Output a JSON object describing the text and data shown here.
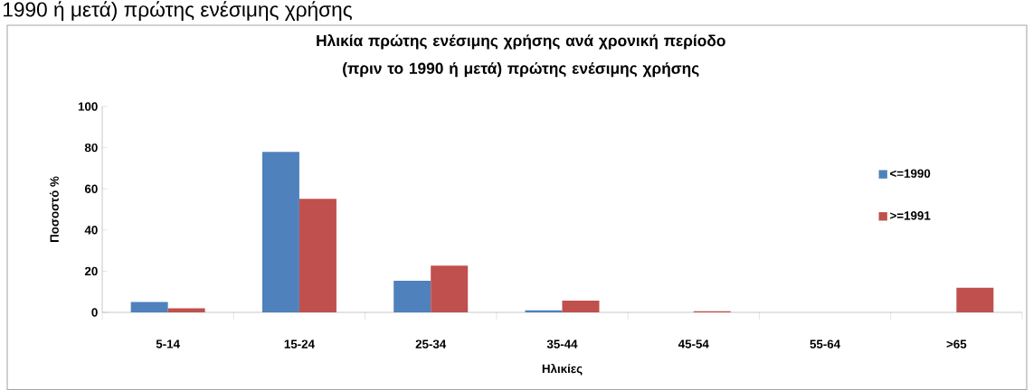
{
  "chart_data": {
    "type": "bar",
    "title": "Ηλικία πρώτης ενέσιμης χρήσης ανά χρονική περίοδο (πριν το 1990 ή μετά) πρώτης ενέσιμης χρήσης",
    "annotations": [
      "1990 ή μετά) πρώτης ενέσιμης χρήσης"
    ],
    "xlabel": "Ηλικίες",
    "ylabel": "Ποσοστό %",
    "categories": [
      "5-14",
      "15-24",
      "25-34",
      "35-44",
      "45-54",
      "55-64",
      ">65"
    ],
    "series": [
      {
        "name": "<=1990",
        "color": "#4f81bd",
        "values": [
          5,
          78,
          15.3,
          1,
          0,
          0,
          0
        ]
      },
      {
        "name": ">=1991",
        "color": "#c0504d",
        "values": [
          2,
          55.2,
          22.7,
          5.7,
          0.5,
          0,
          12
        ]
      }
    ],
    "ylim": [
      0,
      100
    ],
    "yticks": [
      0,
      20,
      40,
      60,
      80,
      100
    ],
    "grid": false,
    "legend": "right"
  }
}
